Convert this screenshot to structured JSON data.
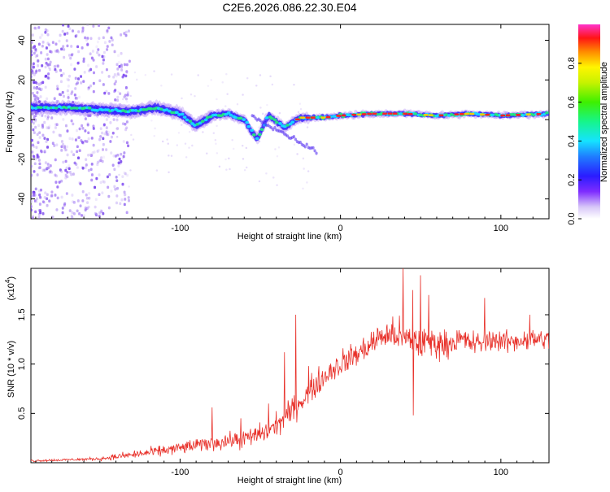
{
  "chart_data": [
    {
      "type": "heatmap",
      "title": "C2E6.2026.086.22.30.E04",
      "xlabel": "Height of straight line (km)",
      "ylabel": "Frequency (Hz)",
      "xlim": [
        -193,
        130
      ],
      "ylim": [
        -50,
        48
      ],
      "x_ticks": [
        -100,
        0,
        100
      ],
      "x_tick_labels": [
        "-100",
        "0",
        "100"
      ],
      "y_ticks": [
        40,
        20,
        0,
        -20,
        -40
      ],
      "y_tick_labels": [
        "40",
        "20",
        "0",
        "-20",
        "-40"
      ],
      "colorbar": {
        "label": "Normalized spectral amplitude",
        "range": [
          0,
          1
        ],
        "ticks": [
          0.0,
          0.2,
          0.4,
          0.6,
          0.8
        ],
        "tick_labels": [
          "0.0",
          "0.2",
          "0.4",
          "0.6",
          "0.8"
        ]
      },
      "trend": {
        "description_values": [
          {
            "x": -190,
            "freq": 6
          },
          {
            "x": -170,
            "freq": 6
          },
          {
            "x": -150,
            "freq": 5
          },
          {
            "x": -130,
            "freq": 4
          },
          {
            "x": -115,
            "freq": 6
          },
          {
            "x": -100,
            "freq": 3
          },
          {
            "x": -90,
            "freq": -3
          },
          {
            "x": -80,
            "freq": 2
          },
          {
            "x": -70,
            "freq": 3
          },
          {
            "x": -60,
            "freq": 0
          },
          {
            "x": -52,
            "freq": -10
          },
          {
            "x": -45,
            "freq": 2
          },
          {
            "x": -35,
            "freq": -4
          },
          {
            "x": -25,
            "freq": 1
          },
          {
            "x": -10,
            "freq": 1
          },
          {
            "x": 0,
            "freq": 2
          },
          {
            "x": 20,
            "freq": 3
          },
          {
            "x": 40,
            "freq": 3
          },
          {
            "x": 60,
            "freq": 2
          },
          {
            "x": 80,
            "freq": 3
          },
          {
            "x": 100,
            "freq": 2
          },
          {
            "x": 130,
            "freq": 3
          }
        ]
      }
    },
    {
      "type": "line",
      "title": "",
      "xlabel": "Height of straight line (km)",
      "ylabel": "SNR (10 * v/v)",
      "y_multiplier_label": "(x10",
      "y_multiplier_exp": "4",
      "y_multiplier_close": ")",
      "xlim": [
        -193,
        130
      ],
      "ylim": [
        0,
        1.97
      ],
      "x_ticks": [
        -100,
        0,
        100
      ],
      "x_tick_labels": [
        "-100",
        "0",
        "100"
      ],
      "y_ticks": [
        0.5,
        1.0,
        1.5
      ],
      "y_tick_labels": [
        "0.5",
        "1.0",
        "1.5"
      ],
      "series": [
        {
          "name": "SNR",
          "color": "#e8312a",
          "envelope": {
            "x": [
              -193,
              -170,
              -150,
              -140,
              -120,
              -100,
              -80,
              -60,
              -45,
              -35,
              -25,
              -15,
              -5,
              5,
              15,
              25,
              35,
              45,
              55,
              65,
              75,
              85,
              95,
              105,
              115,
              130
            ],
            "mean": [
              0.02,
              0.03,
              0.04,
              0.06,
              0.1,
              0.15,
              0.2,
              0.24,
              0.32,
              0.45,
              0.62,
              0.8,
              0.95,
              1.05,
              1.15,
              1.28,
              1.3,
              1.22,
              1.22,
              1.2,
              1.25,
              1.2,
              1.25,
              1.22,
              1.25,
              1.25
            ],
            "spread": [
              0.02,
              0.02,
              0.03,
              0.05,
              0.08,
              0.1,
              0.12,
              0.15,
              0.18,
              0.2,
              0.22,
              0.22,
              0.22,
              0.22,
              0.22,
              0.22,
              0.28,
              0.3,
              0.28,
              0.22,
              0.2,
              0.2,
              0.18,
              0.18,
              0.18,
              0.18
            ]
          },
          "peaks": [
            {
              "x": -80,
              "y": 0.56
            },
            {
              "x": -62,
              "y": 0.45
            },
            {
              "x": -45,
              "y": 0.6
            },
            {
              "x": -35,
              "y": 1.12
            },
            {
              "x": -28,
              "y": 1.5
            },
            {
              "x": -20,
              "y": 0.98
            },
            {
              "x": 39,
              "y": 1.97
            },
            {
              "x": 45,
              "y": 1.75
            },
            {
              "x": 50,
              "y": 1.9
            },
            {
              "x": 45.5,
              "y": 0.48
            },
            {
              "x": 55,
              "y": 1.7
            },
            {
              "x": 90,
              "y": 1.67
            },
            {
              "x": 118,
              "y": 1.5
            }
          ]
        }
      ]
    }
  ]
}
